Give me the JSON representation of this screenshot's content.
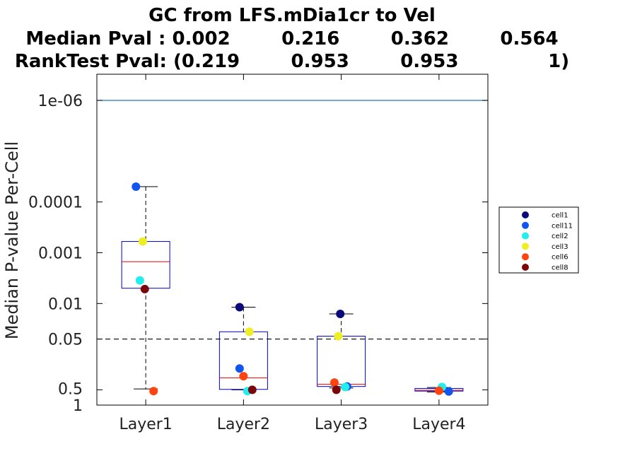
{
  "chart_data": {
    "type": "box",
    "title_lines": [
      "GC from LFS.mDia1cr to Vel",
      "Median Pval : 0.002        0.216        0.362        0.564",
      "RankTest Pval: (0.219        0.953        0.953              1)"
    ],
    "ylabel": "Median P-value Per-Cell",
    "xlabel": "",
    "y_scale": "log-reversed",
    "ylim": [
      1e-06,
      1
    ],
    "y_ticks": [
      {
        "value": 1e-06,
        "label": "1e-06"
      },
      {
        "value": 0.0001,
        "label": "0.0001"
      },
      {
        "value": 0.001,
        "label": "0.001"
      },
      {
        "value": 0.01,
        "label": "0.01"
      },
      {
        "value": 0.05,
        "label": "0.05"
      },
      {
        "value": 0.5,
        "label": "0.5"
      },
      {
        "value": 1,
        "label": "1"
      }
    ],
    "reference_lines": [
      {
        "value": 1e-06,
        "color": "#1f77b4",
        "style": "solid"
      },
      {
        "value": 0.05,
        "color": "#000000",
        "style": "dashed"
      }
    ],
    "categories": [
      "Layer1",
      "Layer2",
      "Layer3",
      "Layer4"
    ],
    "boxes": [
      {
        "category": "Layer1",
        "q1": 0.0006,
        "median": 0.0015,
        "q3": 0.005,
        "whisker_low": 5e-05,
        "whisker_high": 0.48
      },
      {
        "category": "Layer2",
        "q1": 0.036,
        "median": 0.29,
        "q3": 0.49,
        "whisker_low": 0.0118,
        "whisker_high": 0.5
      },
      {
        "category": "Layer3",
        "q1": 0.044,
        "median": 0.39,
        "q3": 0.43,
        "whisker_low": 0.016,
        "whisker_high": 0.46
      },
      {
        "category": "Layer4",
        "q1": 0.47,
        "median": 0.51,
        "q3": 0.53,
        "whisker_low": 0.45,
        "whisker_high": 0.55
      }
    ],
    "series": [
      {
        "name": "cell1",
        "color": "#0a0a7a",
        "points": [
          {
            "x": "Layer2",
            "jitter": -0.04,
            "y": 0.0118
          },
          {
            "x": "Layer3",
            "jitter": -0.01,
            "y": 0.016
          }
        ]
      },
      {
        "name": "cell11",
        "color": "#1155ee",
        "points": [
          {
            "x": "Layer1",
            "jitter": -0.1,
            "y": 5e-05
          },
          {
            "x": "Layer2",
            "jitter": -0.04,
            "y": 0.19
          },
          {
            "x": "Layer3",
            "jitter": 0.06,
            "y": 0.43
          },
          {
            "x": "Layer4",
            "jitter": 0.1,
            "y": 0.54
          }
        ]
      },
      {
        "name": "cell2",
        "color": "#22eeee",
        "points": [
          {
            "x": "Layer1",
            "jitter": -0.06,
            "y": 0.0035
          },
          {
            "x": "Layer2",
            "jitter": 0.04,
            "y": 0.53
          },
          {
            "x": "Layer3",
            "jitter": 0.04,
            "y": 0.44
          },
          {
            "x": "Layer4",
            "jitter": 0.03,
            "y": 0.44
          }
        ]
      },
      {
        "name": "cell3",
        "color": "#eeee22",
        "points": [
          {
            "x": "Layer1",
            "jitter": -0.03,
            "y": 0.0006
          },
          {
            "x": "Layer2",
            "jitter": 0.06,
            "y": 0.036
          },
          {
            "x": "Layer3",
            "jitter": -0.03,
            "y": 0.044
          }
        ]
      },
      {
        "name": "cell6",
        "color": "#ff4411",
        "points": [
          {
            "x": "Layer1",
            "jitter": 0.08,
            "y": 0.53
          },
          {
            "x": "Layer2",
            "jitter": 0.0,
            "y": 0.27
          },
          {
            "x": "Layer3",
            "jitter": -0.07,
            "y": 0.36
          },
          {
            "x": "Layer4",
            "jitter": 0.0,
            "y": 0.52
          }
        ]
      },
      {
        "name": "cell8",
        "color": "#7a0808",
        "points": [
          {
            "x": "Layer1",
            "jitter": -0.01,
            "y": 0.0052
          },
          {
            "x": "Layer2",
            "jitter": 0.09,
            "y": 0.5
          },
          {
            "x": "Layer3",
            "jitter": -0.05,
            "y": 0.5
          }
        ]
      }
    ],
    "legend": {
      "placement": "right"
    },
    "grid": false
  }
}
